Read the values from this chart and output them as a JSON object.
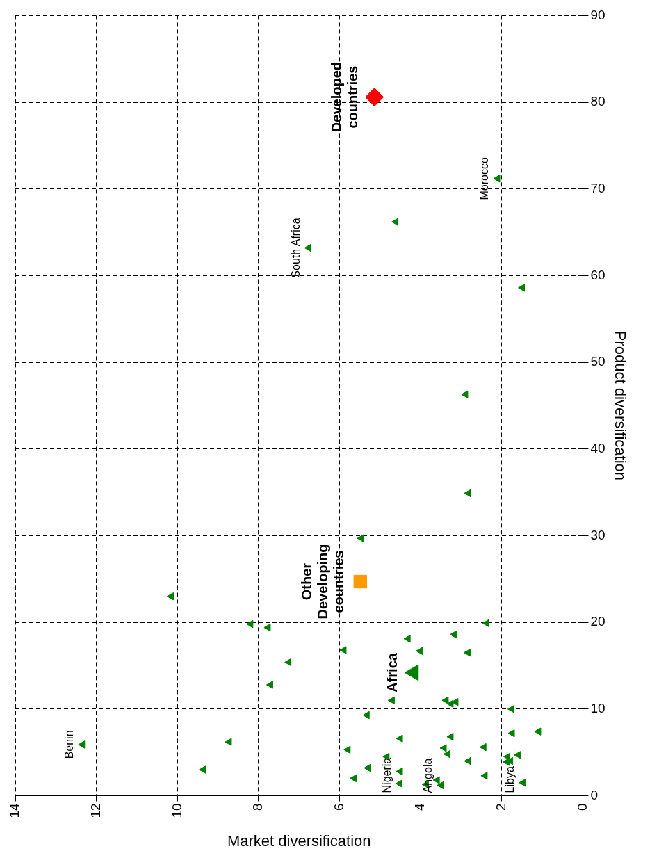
{
  "chart_data": {
    "type": "scatter",
    "xlabel": "Market diversification",
    "ylabel": "Product diversification",
    "xlim": [
      14,
      0
    ],
    "xticks": [
      14,
      12,
      10,
      8,
      6,
      4,
      2,
      0
    ],
    "ylim": [
      0,
      90
    ],
    "yticks": [
      0,
      10,
      20,
      30,
      40,
      50,
      60,
      70,
      80,
      90
    ],
    "grid": true,
    "legend": false,
    "series": [
      {
        "color": "#008000",
        "marker": "triangle",
        "x": [
          8.19,
          7.76,
          7.25,
          7.7,
          12.34,
          8.72,
          9.36,
          10.15,
          2.37,
          3.17,
          4.31,
          5.89,
          4.01,
          2.83,
          4.7,
          3.37,
          3.25,
          3.13,
          1.75,
          5.32,
          1.09,
          1.74,
          4.5,
          3.25,
          2.44,
          5.79,
          3.42,
          3.33,
          4.83,
          1.59,
          1.85,
          1.87,
          1.78,
          2.82,
          5.29,
          4.5,
          5.64,
          2.41,
          4.51,
          3.86,
          3.59,
          3.49,
          1.47,
          1.49,
          2.89,
          2.82,
          5.46,
          2.1,
          4.61,
          6.76
        ],
        "values": [
          19.8,
          19.4,
          15.4,
          12.8,
          5.9,
          6.2,
          3.0,
          23,
          19.9,
          18.6,
          18.1,
          16.8,
          16.7,
          16.5,
          11.0,
          11.0,
          10.6,
          10.8,
          10.0,
          9.3,
          7.4,
          7.2,
          6.6,
          6.8,
          5.6,
          5.3,
          5.5,
          4.8,
          4.5,
          4.7,
          4.5,
          3.9,
          4.0,
          4.0,
          3.2,
          2.8,
          2.0,
          2.3,
          1.4,
          1.3,
          1.8,
          1.2,
          1.5,
          58.6,
          46.3,
          34.9,
          29.7,
          71.2,
          66.2,
          63.2
        ]
      },
      {
        "name": "Africa",
        "color": "#008000",
        "marker": "triangle",
        "x": [
          4.17
        ],
        "values": [
          14.2
        ]
      },
      {
        "name": "Other Developing countries",
        "color": "#ff9900",
        "marker": "square",
        "x": [
          5.49
        ],
        "values": [
          24.7
        ]
      },
      {
        "name": "Developed countries",
        "color": "#ff0000",
        "marker": "diamond",
        "x": [
          5.14
        ],
        "values": [
          80.6
        ]
      }
    ],
    "annotations": [
      {
        "text": "Benin",
        "x": 12.34,
        "y": 5.9
      },
      {
        "text": "Nigeria",
        "x": 4.51,
        "y": 1.4
      },
      {
        "text": "Angola",
        "x": 3.49,
        "y": 1.2
      },
      {
        "text": "Libya",
        "x": 1.47,
        "y": 1.5
      },
      {
        "text": "South Africa",
        "x": 6.76,
        "y": 63.2
      },
      {
        "text": "Morocco",
        "x": 2.1,
        "y": 71.2
      }
    ]
  }
}
